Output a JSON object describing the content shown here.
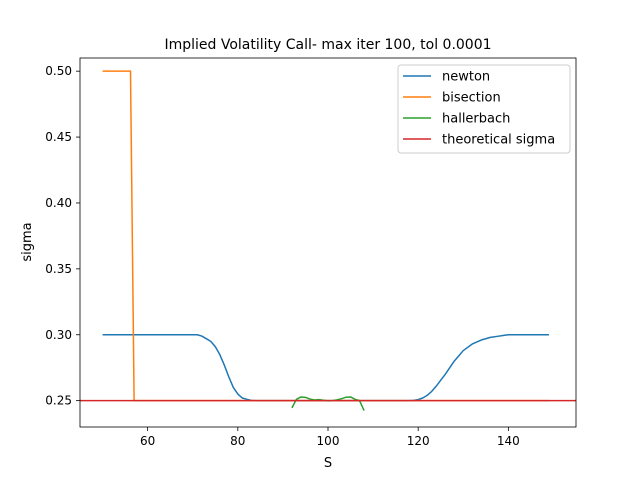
{
  "chart_data": {
    "type": "line",
    "title": "Implied Volatility Call- max iter 100, tol 0.0001",
    "xlabel": "S",
    "ylabel": "sigma",
    "xlim": [
      45,
      155
    ],
    "ylim": [
      0.23,
      0.51
    ],
    "xticks": [
      "60",
      "80",
      "100",
      "120",
      "140"
    ],
    "yticks": [
      "0.25",
      "0.30",
      "0.35",
      "0.40",
      "0.45",
      "0.50"
    ],
    "grid": false,
    "legend_position": "top-right",
    "series": [
      {
        "name": "newton",
        "color": "#1f77b4",
        "x": [
          50,
          55,
          60,
          65,
          70,
          71,
          72,
          73,
          74,
          75,
          76,
          77,
          78,
          79,
          80,
          81,
          82,
          83,
          84,
          86,
          90,
          95,
          100,
          105,
          110,
          115,
          118,
          119,
          120,
          121,
          122,
          123,
          124,
          125,
          126,
          127,
          128,
          129,
          130,
          132,
          134,
          136,
          138,
          139,
          140,
          145,
          149
        ],
        "y": [
          0.3,
          0.3,
          0.3,
          0.3,
          0.3,
          0.3,
          0.299,
          0.297,
          0.295,
          0.291,
          0.285,
          0.277,
          0.268,
          0.26,
          0.255,
          0.252,
          0.251,
          0.2502,
          0.25,
          0.25,
          0.25,
          0.25,
          0.25,
          0.25,
          0.25,
          0.25,
          0.25,
          0.2502,
          0.2508,
          0.252,
          0.254,
          0.257,
          0.261,
          0.2655,
          0.27,
          0.275,
          0.28,
          0.284,
          0.288,
          0.293,
          0.296,
          0.298,
          0.299,
          0.2995,
          0.3,
          0.3,
          0.3
        ]
      },
      {
        "name": "bisection",
        "color": "#ff7f0e",
        "x": [
          50,
          56,
          56.2,
          57,
          57.1,
          60,
          70,
          80,
          90,
          100,
          110,
          120,
          130,
          140,
          149
        ],
        "y": [
          0.5,
          0.5,
          0.5,
          0.25,
          0.25,
          0.25,
          0.25,
          0.25,
          0.25,
          0.25,
          0.25,
          0.25,
          0.25,
          0.25,
          0.25
        ]
      },
      {
        "name": "hallerbach",
        "color": "#2ca02c",
        "x": [
          92,
          93,
          94,
          95,
          96,
          97,
          98,
          99,
          100,
          101,
          102,
          103,
          104,
          105,
          106,
          107,
          108
        ],
        "y": [
          0.2445,
          0.251,
          0.2528,
          0.2525,
          0.2512,
          0.2505,
          0.2508,
          0.2503,
          0.2498,
          0.25,
          0.2506,
          0.2515,
          0.2526,
          0.2528,
          0.251,
          0.25,
          0.2425
        ]
      },
      {
        "name": "theoretical sigma",
        "color": "#d62728",
        "x": [
          45,
          155
        ],
        "y": [
          0.25,
          0.25
        ]
      }
    ]
  }
}
